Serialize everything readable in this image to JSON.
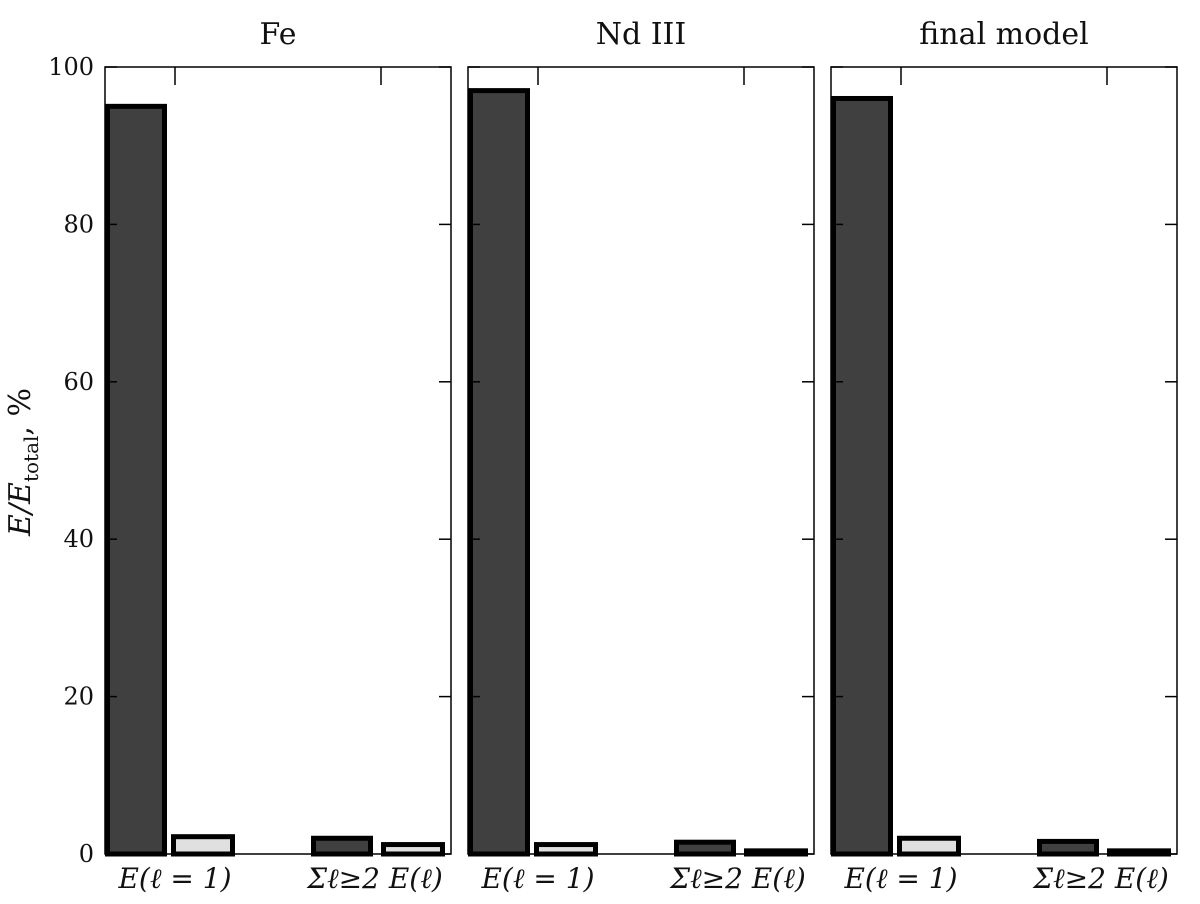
{
  "chart_data": {
    "type": "bar",
    "ylabel": "E/E_total, %",
    "ylim": [
      0,
      100
    ],
    "yticks": [
      "0",
      "20",
      "40",
      "60",
      "80",
      "100"
    ],
    "categories": [
      "E(ℓ = 1)",
      "Σℓ≥2 E(ℓ)"
    ],
    "series_colors": [
      "#404040",
      "#e0e0e0"
    ],
    "panels": [
      {
        "title": "Fe",
        "values": [
          [
            95,
            2.2
          ],
          [
            2.0,
            1.2
          ]
        ]
      },
      {
        "title": "Nd III",
        "values": [
          [
            97,
            1.2
          ],
          [
            1.5,
            0.4
          ]
        ]
      },
      {
        "title": "final model",
        "values": [
          [
            96,
            2.0
          ],
          [
            1.6,
            0.4
          ]
        ]
      }
    ]
  }
}
